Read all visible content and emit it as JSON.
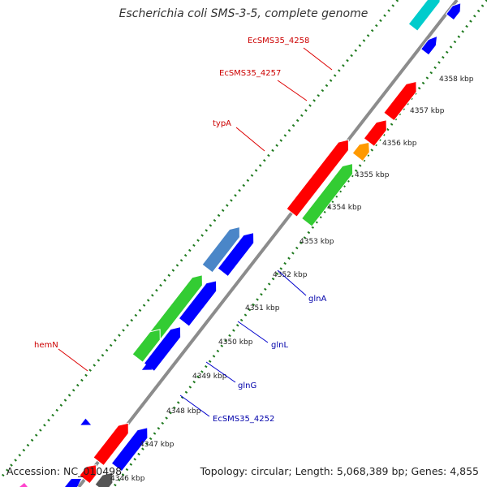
{
  "title": "Escherichia coli SMS-3-5, complete genome",
  "footer": {
    "accession": "Accession: NC_010498",
    "topology": "Topology: circular; Length: 5,068,389 bp; Genes: 4,855"
  },
  "colors": {
    "backbone": "#8c8c8c",
    "tick": "#1f7a1f",
    "minus": "#ff0000",
    "plus": "#0000ff",
    "orange": "#ff9900",
    "green": "#33cc33",
    "steel": "#4a86c8",
    "gray": "#555555",
    "cyan": "#00cccc",
    "magenta": "#ff44cc"
  },
  "kbp_labels": [
    "4346 kbp",
    "4347 kbp",
    "4348 kbp",
    "4349 kbp",
    "4350 kbp",
    "4351 kbp",
    "4352 kbp",
    "4353 kbp",
    "4354 kbp",
    "4355 kbp",
    "4356 kbp",
    "4357 kbp",
    "4358 kbp"
  ],
  "gene_labels": {
    "top": [
      "EcSMS35_4258",
      "EcSMS35_4257",
      "typA",
      "hemN"
    ],
    "bottom": [
      "glnA",
      "glnL",
      "glnG",
      "EcSMS35_4252"
    ]
  }
}
